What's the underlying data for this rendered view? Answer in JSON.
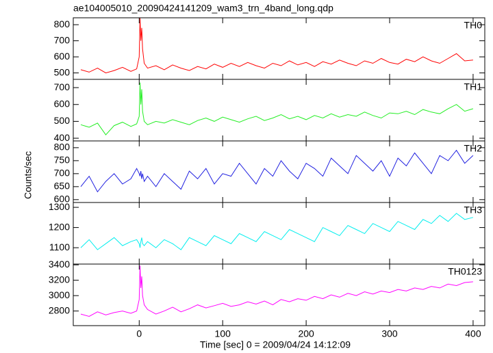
{
  "title": "ae104005010_20090424141209_wam3_trn_4band_long.qdp",
  "y_label": "Counts/sec",
  "x_label": "Time [sec] 0 = 2009/04/24 14:12:09",
  "chart_data": [
    {
      "type": "line",
      "label": "TH0",
      "color": "#ff0000",
      "x": [
        -70,
        -60,
        -50,
        -40,
        -30,
        -20,
        -10,
        -3,
        0,
        1,
        2,
        3,
        4,
        6,
        10,
        20,
        30,
        40,
        50,
        60,
        70,
        80,
        90,
        100,
        110,
        120,
        130,
        140,
        150,
        160,
        170,
        180,
        190,
        200,
        210,
        220,
        230,
        240,
        250,
        260,
        270,
        280,
        290,
        300,
        310,
        320,
        330,
        340,
        350,
        360,
        370,
        380,
        390,
        400
      ],
      "values": [
        520,
        505,
        530,
        500,
        515,
        535,
        510,
        525,
        600,
        840,
        700,
        780,
        650,
        560,
        530,
        545,
        520,
        550,
        530,
        515,
        540,
        525,
        555,
        535,
        560,
        540,
        565,
        545,
        530,
        560,
        545,
        575,
        550,
        565,
        540,
        570,
        555,
        580,
        560,
        545,
        575,
        560,
        590,
        565,
        555,
        585,
        570,
        600,
        575,
        560,
        590,
        620,
        575,
        580
      ],
      "xlim": [
        -79,
        414
      ],
      "ylim": [
        460,
        843
      ],
      "xticks": [
        0,
        100,
        200,
        300,
        400
      ],
      "yticks": [
        500,
        600,
        700,
        800
      ]
    },
    {
      "type": "line",
      "label": "TH1",
      "color": "#22ee22",
      "x": [
        -70,
        -60,
        -50,
        -40,
        -30,
        -20,
        -10,
        -3,
        0,
        1,
        2,
        3,
        4,
        6,
        10,
        20,
        30,
        40,
        50,
        60,
        70,
        80,
        90,
        100,
        110,
        120,
        130,
        140,
        150,
        160,
        170,
        180,
        190,
        200,
        210,
        220,
        230,
        240,
        250,
        260,
        270,
        280,
        290,
        300,
        310,
        320,
        330,
        340,
        350,
        360,
        370,
        380,
        390,
        400
      ],
      "values": [
        480,
        465,
        490,
        420,
        475,
        495,
        470,
        485,
        530,
        730,
        600,
        690,
        560,
        500,
        480,
        500,
        490,
        510,
        495,
        480,
        505,
        520,
        500,
        525,
        510,
        495,
        515,
        530,
        505,
        520,
        540,
        515,
        530,
        510,
        535,
        520,
        545,
        525,
        540,
        530,
        555,
        535,
        520,
        550,
        545,
        560,
        540,
        570,
        555,
        545,
        575,
        600,
        560,
        575
      ],
      "xlim": [
        -79,
        414
      ],
      "ylim": [
        384,
        749
      ],
      "xticks": [
        0,
        100,
        200,
        300,
        400
      ],
      "yticks": [
        400,
        500,
        600,
        700
      ]
    },
    {
      "type": "line",
      "label": "TH2",
      "color": "#2020e0",
      "x": [
        -70,
        -60,
        -50,
        -40,
        -30,
        -20,
        -10,
        -3,
        0,
        1,
        2,
        3,
        4,
        6,
        10,
        20,
        30,
        40,
        50,
        60,
        70,
        80,
        90,
        100,
        110,
        120,
        130,
        140,
        150,
        160,
        170,
        180,
        190,
        200,
        210,
        220,
        230,
        240,
        250,
        260,
        270,
        280,
        290,
        300,
        310,
        320,
        330,
        340,
        350,
        360,
        370,
        380,
        390,
        400
      ],
      "values": [
        650,
        690,
        630,
        670,
        700,
        660,
        680,
        720,
        700,
        690,
        710,
        680,
        700,
        670,
        690,
        650,
        700,
        670,
        640,
        710,
        680,
        720,
        660,
        700,
        690,
        740,
        700,
        660,
        720,
        690,
        750,
        710,
        680,
        740,
        720,
        690,
        760,
        730,
        700,
        770,
        740,
        710,
        750,
        690,
        760,
        730,
        780,
        740,
        700,
        770,
        750,
        790,
        740,
        770
      ],
      "xlim": [
        -79,
        414
      ],
      "ylim": [
        589,
        826
      ],
      "xticks": [
        0,
        100,
        200,
        300,
        400
      ],
      "yticks": [
        600,
        650,
        700,
        750,
        800
      ]
    },
    {
      "type": "line",
      "label": "TH3",
      "color": "#00eeee",
      "x": [
        -70,
        -60,
        -50,
        -40,
        -30,
        -20,
        -10,
        -3,
        0,
        1,
        2,
        3,
        4,
        6,
        10,
        20,
        30,
        40,
        50,
        60,
        70,
        80,
        90,
        100,
        110,
        120,
        130,
        140,
        150,
        160,
        170,
        180,
        190,
        200,
        210,
        220,
        230,
        240,
        250,
        260,
        270,
        280,
        290,
        300,
        310,
        320,
        330,
        340,
        350,
        360,
        370,
        380,
        390,
        400
      ],
      "values": [
        1100,
        1140,
        1090,
        1120,
        1150,
        1110,
        1130,
        1140,
        1120,
        1100,
        1130,
        1150,
        1120,
        1110,
        1130,
        1100,
        1140,
        1120,
        1090,
        1150,
        1130,
        1110,
        1160,
        1140,
        1120,
        1170,
        1150,
        1130,
        1180,
        1160,
        1140,
        1190,
        1170,
        1150,
        1130,
        1200,
        1180,
        1160,
        1210,
        1190,
        1170,
        1220,
        1200,
        1180,
        1230,
        1210,
        1190,
        1240,
        1220,
        1260,
        1230,
        1270,
        1240,
        1250
      ],
      "xlim": [
        -79,
        414
      ],
      "ylim": [
        1019,
        1324
      ],
      "xticks": [
        0,
        100,
        200,
        300,
        400
      ],
      "yticks": [
        1100,
        1200,
        1300
      ]
    },
    {
      "type": "line",
      "label": "TH0123",
      "color": "#ff00ff",
      "x": [
        -70,
        -60,
        -50,
        -40,
        -30,
        -20,
        -10,
        -3,
        0,
        1,
        2,
        3,
        4,
        6,
        10,
        20,
        30,
        40,
        50,
        60,
        70,
        80,
        90,
        100,
        110,
        120,
        130,
        140,
        150,
        160,
        170,
        180,
        190,
        200,
        210,
        220,
        230,
        240,
        250,
        260,
        270,
        280,
        290,
        300,
        310,
        320,
        330,
        340,
        350,
        360,
        370,
        380,
        390,
        400
      ],
      "values": [
        2760,
        2730,
        2790,
        2750,
        2780,
        2800,
        2770,
        2800,
        2950,
        3390,
        3100,
        3250,
        3000,
        2880,
        2820,
        2760,
        2800,
        2850,
        2790,
        2830,
        2880,
        2840,
        2870,
        2900,
        2860,
        2880,
        2920,
        2890,
        2930,
        2880,
        2950,
        2920,
        2960,
        2940,
        2990,
        2960,
        3010,
        2980,
        3030,
        3000,
        3050,
        3020,
        3060,
        3040,
        3080,
        3060,
        3100,
        3080,
        3120,
        3100,
        3150,
        3130,
        3170,
        3180
      ],
      "xlim": [
        -79,
        414
      ],
      "ylim": [
        2610,
        3410
      ],
      "xticks": [
        0,
        100,
        200,
        300,
        400
      ],
      "yticks": [
        2800,
        3000,
        3200,
        3400
      ]
    }
  ]
}
